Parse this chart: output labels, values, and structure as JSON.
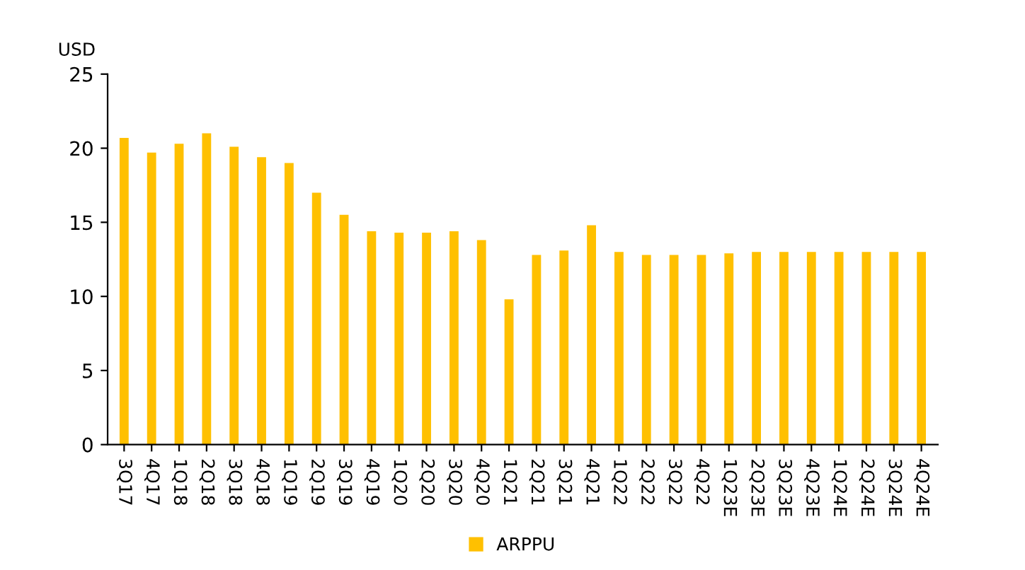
{
  "chart_data": {
    "type": "bar",
    "ylabel": "USD",
    "categories": [
      "3Q17",
      "4Q17",
      "1Q18",
      "2Q18",
      "3Q18",
      "4Q18",
      "1Q19",
      "2Q19",
      "3Q19",
      "4Q19",
      "1Q20",
      "2Q20",
      "3Q20",
      "4Q20",
      "1Q21",
      "2Q21",
      "3Q21",
      "4Q21",
      "1Q22",
      "2Q22",
      "3Q22",
      "4Q22",
      "1Q23E",
      "2Q23E",
      "3Q23E",
      "4Q23E",
      "1Q24E",
      "2Q24E",
      "3Q24E",
      "4Q24E"
    ],
    "series": [
      {
        "name": "ARPPU",
        "color": "#ffc000",
        "values": [
          20.7,
          19.7,
          20.3,
          21.0,
          20.1,
          19.4,
          19.0,
          17.0,
          15.5,
          14.4,
          14.3,
          14.3,
          14.4,
          13.8,
          9.8,
          12.8,
          13.1,
          14.8,
          13.0,
          12.8,
          12.8,
          12.8,
          12.9,
          13.0,
          13.0,
          13.0,
          13.0,
          13.0,
          13.0,
          13.0
        ]
      }
    ],
    "ylim": [
      0,
      25
    ],
    "yticks": [
      0,
      5,
      10,
      15,
      20,
      25
    ],
    "grid": false,
    "legend": "bottom"
  }
}
